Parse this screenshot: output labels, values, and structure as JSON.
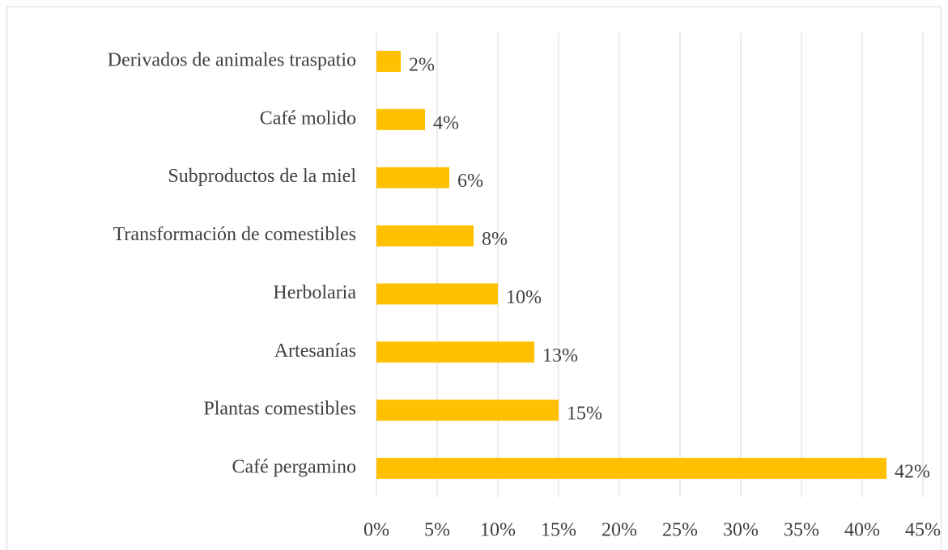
{
  "chart_data": {
    "type": "bar",
    "orientation": "horizontal",
    "categories": [
      "Derivados de animales traspatio",
      "Café molido",
      "Subproductos de la miel",
      "Transformación de comestibles",
      "Herbolaria",
      "Artesanías",
      "Plantas comestibles",
      "Café pergamino"
    ],
    "values": [
      2,
      4,
      6,
      8,
      10,
      13,
      15,
      42
    ],
    "value_labels": [
      "2%",
      "4%",
      "6%",
      "8%",
      "10%",
      "13%",
      "15%",
      "42%"
    ],
    "color": "#ffc000",
    "xlim": [
      0,
      45
    ],
    "xticks": [
      {
        "value": 0,
        "label": "0%"
      },
      {
        "value": 5,
        "label": "5%"
      },
      {
        "value": 10,
        "label": "10%"
      },
      {
        "value": 15,
        "label": "15%"
      },
      {
        "value": 20,
        "label": "20%"
      },
      {
        "value": 25,
        "label": "25%"
      },
      {
        "value": 30,
        "label": "30%"
      },
      {
        "value": 35,
        "label": "35%"
      },
      {
        "value": 40,
        "label": "40%"
      },
      {
        "value": 45,
        "label": "45%"
      }
    ],
    "grid": true
  }
}
